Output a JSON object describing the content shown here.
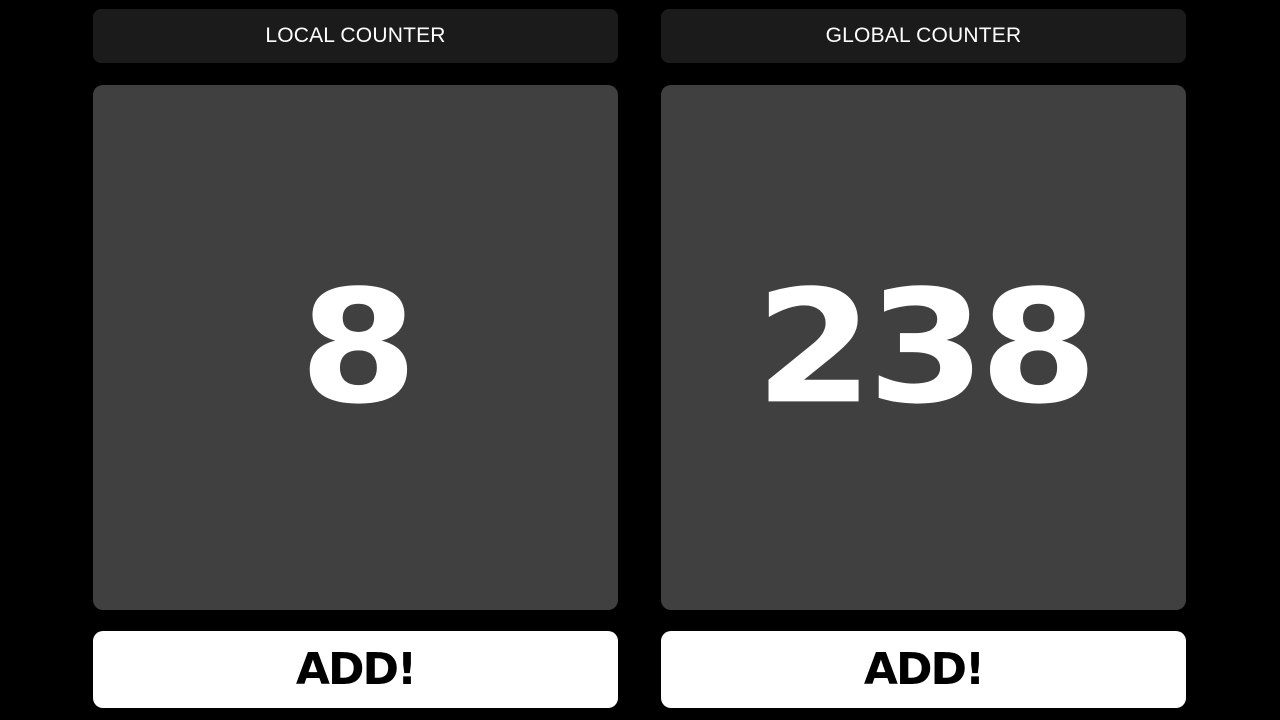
{
  "local": {
    "label": "LOCAL COUNTER",
    "value": "8",
    "button_label": "ADD!"
  },
  "global": {
    "label": "GLOBAL COUNTER",
    "value": "238",
    "button_label": "ADD!"
  },
  "colors": {
    "background": "#000000",
    "label_bar": "#1b1b1b",
    "display": "#404040",
    "button": "#ffffff",
    "text_light": "#ffffff",
    "text_dark": "#000000"
  }
}
